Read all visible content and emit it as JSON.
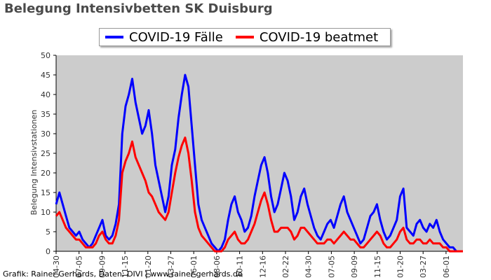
{
  "chart_data": {
    "type": "line",
    "title": "Belegung Intensivbetten SK Duisburg",
    "ylabel": "Belegung Intensivstationen",
    "xlabel": "",
    "ylim": [
      0,
      50
    ],
    "y_ticks": [
      0,
      5,
      10,
      15,
      20,
      25,
      30,
      35,
      40,
      45,
      50
    ],
    "x_tick_labels": [
      "04-30",
      "07-05",
      "09-09",
      "11-15",
      "01-20",
      "03-27",
      "06-01",
      "08-06",
      "10-11",
      "12-16",
      "02-22",
      "04-30",
      "07-05",
      "09-09",
      "11-15",
      "01-20",
      "03-27",
      "06-01"
    ],
    "plot_background": "#cccccc",
    "legend_position": "top",
    "series": [
      {
        "name": "COVID-19 Fälle",
        "color": "#0000ff",
        "values": [
          12,
          15,
          12,
          9,
          6,
          5,
          4,
          5,
          3,
          2,
          1,
          2,
          4,
          6,
          8,
          4,
          3,
          4,
          7,
          12,
          30,
          37,
          40,
          44,
          38,
          34,
          30,
          32,
          36,
          30,
          22,
          18,
          14,
          10,
          14,
          22,
          26,
          34,
          40,
          45,
          42,
          32,
          22,
          12,
          8,
          6,
          4,
          2,
          1,
          0,
          1,
          3,
          8,
          12,
          14,
          10,
          8,
          5,
          6,
          9,
          14,
          18,
          22,
          24,
          20,
          14,
          10,
          12,
          16,
          20,
          18,
          14,
          8,
          10,
          14,
          16,
          12,
          9,
          6,
          4,
          3,
          5,
          7,
          8,
          6,
          9,
          12,
          14,
          10,
          8,
          6,
          4,
          2,
          3,
          6,
          9,
          10,
          12,
          8,
          5,
          3,
          4,
          6,
          8,
          14,
          16,
          6,
          5,
          4,
          7,
          8,
          6,
          5,
          7,
          6,
          8,
          5,
          3,
          2,
          1,
          1,
          0,
          0,
          0
        ]
      },
      {
        "name": "COVID-19 beatmet",
        "color": "#ff0000",
        "values": [
          9,
          10,
          8,
          6,
          5,
          4,
          3,
          3,
          2,
          1,
          1,
          1,
          2,
          4,
          5,
          3,
          2,
          2,
          4,
          8,
          20,
          23,
          25,
          28,
          24,
          22,
          20,
          18,
          15,
          14,
          12,
          10,
          9,
          8,
          10,
          15,
          20,
          24,
          27,
          29,
          25,
          18,
          10,
          6,
          4,
          3,
          2,
          1,
          0,
          0,
          0,
          1,
          3,
          4,
          5,
          3,
          2,
          2,
          3,
          5,
          7,
          10,
          13,
          15,
          12,
          8,
          5,
          5,
          6,
          6,
          6,
          5,
          3,
          4,
          6,
          6,
          5,
          4,
          3,
          2,
          2,
          2,
          3,
          3,
          2,
          3,
          4,
          5,
          4,
          3,
          3,
          2,
          1,
          1,
          2,
          3,
          4,
          5,
          4,
          2,
          1,
          1,
          2,
          3,
          5,
          6,
          3,
          2,
          2,
          3,
          3,
          2,
          2,
          3,
          2,
          2,
          2,
          1,
          1,
          0,
          0,
          0,
          0,
          0
        ]
      }
    ]
  },
  "legend": {
    "fall_label": "COVID-19 Fälle",
    "beatmet_label": "COVID-19 beatmet"
  },
  "credit": "Grafik: Rainer Gerhards, Daten: DIVI | www.rainer-gerhards.de"
}
